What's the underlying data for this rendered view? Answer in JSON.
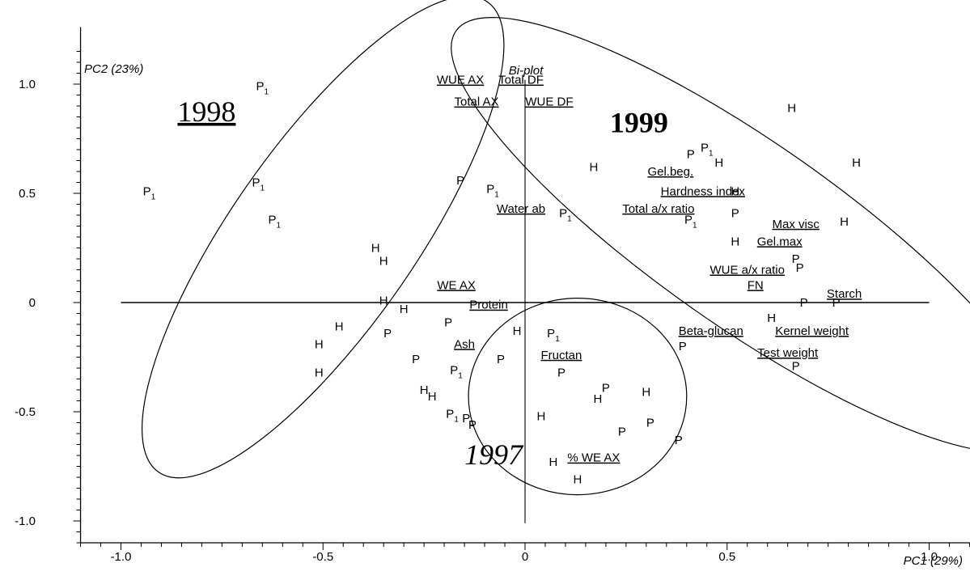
{
  "chart_data": {
    "type": "scatter",
    "title": "Bi-plot",
    "xlabel": "PC1 (29%)",
    "ylabel": "PC2 (23%)",
    "xlim": [
      -1.1,
      1.1
    ],
    "ylim": [
      -1.1,
      1.15
    ],
    "x_ticks": [
      {
        "value": -1.0,
        "label": "-1.0"
      },
      {
        "value": -0.5,
        "label": "-0.5"
      },
      {
        "value": 0.0,
        "label": "0"
      },
      {
        "value": 0.5,
        "label": "0.5"
      },
      {
        "value": 1.0,
        "label": "1.0"
      }
    ],
    "y_ticks": [
      {
        "value": 1.0,
        "label": "1.0"
      },
      {
        "value": 0.5,
        "label": "0.5"
      },
      {
        "value": 0.0,
        "label": "0"
      },
      {
        "value": -0.5,
        "label": "-0.5"
      },
      {
        "value": -1.0,
        "label": "-1.0"
      }
    ],
    "groups": [
      {
        "label": "1998",
        "cx": -0.5,
        "cy": 0.3,
        "rx": 0.71,
        "ry": 0.42,
        "angle": 55,
        "label_x": -0.86,
        "label_y": 0.83,
        "underline": true,
        "italic": false,
        "bold": false
      },
      {
        "label": "1999",
        "cx": 0.55,
        "cy": 0.31,
        "rx": 0.88,
        "ry": 0.42,
        "angle": -35,
        "label_x": 0.21,
        "label_y": 0.78,
        "underline": false,
        "italic": false,
        "bold": true
      },
      {
        "label": "1997",
        "cx": 0.13,
        "cy": -0.43,
        "rx": 0.27,
        "ry": 0.45,
        "angle": 0,
        "label_x": -0.15,
        "label_y": -0.74,
        "underline": false,
        "italic": true,
        "bold": false
      }
    ],
    "variables": [
      {
        "label": "WUE AX",
        "x": -0.16,
        "y": 1.02
      },
      {
        "label": "Total DF",
        "x": -0.01,
        "y": 1.02
      },
      {
        "label": "Total AX",
        "x": -0.12,
        "y": 0.92
      },
      {
        "label": "WUE DF",
        "x": 0.06,
        "y": 0.92
      },
      {
        "label": "Water ab",
        "x": -0.01,
        "y": 0.43
      },
      {
        "label": "Gel.beg.",
        "x": 0.36,
        "y": 0.6
      },
      {
        "label": "Hardness index",
        "x": 0.44,
        "y": 0.51
      },
      {
        "label": "Total a/x ratio",
        "x": 0.33,
        "y": 0.43
      },
      {
        "label": "Max visc",
        "x": 0.67,
        "y": 0.36
      },
      {
        "label": "Gel.max",
        "x": 0.63,
        "y": 0.28
      },
      {
        "label": "WUE a/x ratio",
        "x": 0.55,
        "y": 0.15
      },
      {
        "label": "FN",
        "x": 0.57,
        "y": 0.08,
        "plain": true
      },
      {
        "label": "Starch",
        "x": 0.79,
        "y": 0.04
      },
      {
        "label": "WE AX",
        "x": -0.17,
        "y": 0.08
      },
      {
        "label": "Protein",
        "x": -0.09,
        "y": -0.01
      },
      {
        "label": "Ash",
        "x": -0.15,
        "y": -0.19
      },
      {
        "label": "Fructan",
        "x": 0.09,
        "y": -0.24
      },
      {
        "label": "Beta-glucan",
        "x": 0.46,
        "y": -0.13
      },
      {
        "label": "Kernel weight",
        "x": 0.71,
        "y": -0.13
      },
      {
        "label": "Test weight",
        "x": 0.65,
        "y": -0.23
      },
      {
        "label": "% WE AX",
        "x": 0.17,
        "y": -0.71
      }
    ],
    "series": [
      {
        "name": "H",
        "marker": "H",
        "points": [
          [
            -0.37,
            0.25
          ],
          [
            -0.35,
            0.19
          ],
          [
            -0.35,
            0.01
          ],
          [
            -0.3,
            -0.03
          ],
          [
            -0.46,
            -0.11
          ],
          [
            -0.51,
            -0.19
          ],
          [
            -0.51,
            -0.32
          ],
          [
            -0.25,
            -0.4
          ],
          [
            -0.23,
            -0.43
          ],
          [
            -0.02,
            -0.13
          ],
          [
            0.04,
            -0.52
          ],
          [
            0.18,
            -0.44
          ],
          [
            0.3,
            -0.41
          ],
          [
            0.07,
            -0.73
          ],
          [
            0.13,
            -0.81
          ],
          [
            0.17,
            0.62
          ],
          [
            0.48,
            0.64
          ],
          [
            0.52,
            0.51
          ],
          [
            0.52,
            0.28
          ],
          [
            0.66,
            0.89
          ],
          [
            0.82,
            0.64
          ],
          [
            0.79,
            0.37
          ],
          [
            0.61,
            -0.07
          ]
        ]
      },
      {
        "name": "P",
        "marker": "P",
        "points": [
          [
            -0.65,
            0.99
          ],
          [
            -0.93,
            0.51
          ],
          [
            -0.66,
            0.55
          ],
          [
            -0.62,
            0.38
          ],
          [
            -0.08,
            0.52
          ],
          [
            -0.16,
            0.56
          ],
          [
            0.1,
            0.41
          ],
          [
            0.41,
            0.68
          ],
          [
            0.45,
            0.71
          ],
          [
            0.41,
            0.38
          ],
          [
            0.52,
            0.41
          ],
          [
            0.67,
            0.2
          ],
          [
            0.68,
            0.16
          ],
          [
            0.69,
            0.0
          ],
          [
            0.77,
            0.0
          ],
          [
            0.07,
            -0.14
          ],
          [
            0.09,
            -0.32
          ],
          [
            -0.34,
            -0.14
          ],
          [
            -0.19,
            -0.09
          ],
          [
            -0.27,
            -0.26
          ],
          [
            -0.17,
            -0.31
          ],
          [
            -0.06,
            -0.26
          ],
          [
            -0.18,
            -0.51
          ],
          [
            -0.14,
            -0.53
          ],
          [
            -0.13,
            -0.56
          ],
          [
            0.2,
            -0.39
          ],
          [
            0.24,
            -0.59
          ],
          [
            0.31,
            -0.55
          ],
          [
            0.38,
            -0.63
          ],
          [
            0.39,
            -0.2
          ],
          [
            0.67,
            -0.29
          ]
        ]
      }
    ],
    "subscripted_points": {
      "P": [
        0,
        1,
        2,
        3,
        4,
        6,
        8,
        9,
        15,
        20,
        22,
        23
      ]
    }
  }
}
